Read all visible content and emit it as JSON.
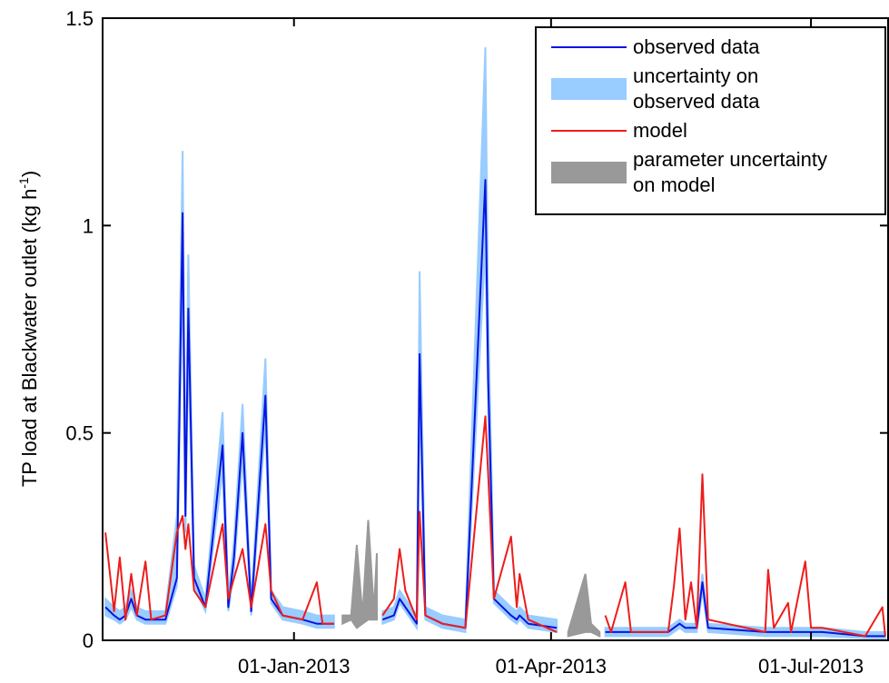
{
  "chart_data": {
    "type": "line",
    "y_label": [
      "TP load at Blackwater outlet (kg h",
      "-1",
      ")"
    ],
    "x": [
      "27-Oct-2012",
      "30-Oct-2012",
      "01-Nov-2012",
      "03-Nov-2012",
      "05-Nov-2012",
      "07-Nov-2012",
      "10-Nov-2012",
      "12-Nov-2012",
      "17-Nov-2012",
      "21-Nov-2012",
      "23-Nov-2012",
      "24-Nov-2012",
      "25-Nov-2012",
      "27-Nov-2012",
      "01-Dec-2012",
      "07-Dec-2012",
      "09-Dec-2012",
      "11-Dec-2012",
      "14-Dec-2012",
      "17-Dec-2012",
      "22-Dec-2012",
      "24-Dec-2012",
      "28-Dec-2012",
      "04-Jan-2013",
      "09-Jan-2013",
      "11-Jan-2013",
      "15-Jan-2013",
      "18-Jan-2013",
      "21-Jan-2013",
      "23-Jan-2013",
      "25-Jan-2013",
      "27-Jan-2013",
      "29-Jan-2013",
      "30-Jan-2013",
      "01-Feb-2013",
      "05-Feb-2013",
      "07-Feb-2013",
      "09-Feb-2013",
      "13-Feb-2013",
      "14-Feb-2013",
      "16-Feb-2013",
      "22-Feb-2013",
      "02-Mar-2013",
      "09-Mar-2013",
      "10-Mar-2013",
      "12-Mar-2013",
      "18-Mar-2013",
      "20-Mar-2013",
      "21-Mar-2013",
      "24-Mar-2013",
      "03-Apr-2013",
      "07-Apr-2013",
      "13-Apr-2013",
      "15-Apr-2013",
      "18-Apr-2013",
      "20-Apr-2013",
      "22-Apr-2013",
      "27-Apr-2013",
      "29-Apr-2013",
      "12-May-2013",
      "14-May-2013",
      "16-May-2013",
      "18-May-2013",
      "20-May-2013",
      "22-May-2013",
      "24-May-2013",
      "26-May-2013",
      "15-Jun-2013",
      "16-Jun-2013",
      "18-Jun-2013",
      "23-Jun-2013",
      "24-Jun-2013",
      "29-Jun-2013",
      "01-Jul-2013",
      "05-Jul-2013",
      "20-Jul-2013",
      "26-Jul-2013",
      "27-Jul-2013"
    ],
    "xlim": [
      "26-Oct-2012",
      "28-Jul-2013"
    ],
    "xticks": [
      "01-Jan-2013",
      "01-Apr-2013",
      "01-Jul-2013"
    ],
    "ylim": [
      0,
      1.5
    ],
    "yticks": [
      0,
      0.5,
      1,
      1.5
    ],
    "legend": "upper right",
    "series": [
      {
        "name": "observed data",
        "color": "#0a14e0",
        "style": "line",
        "values": [
          0.08,
          0.06,
          0.05,
          0.06,
          0.1,
          0.06,
          0.05,
          0.05,
          0.05,
          0.15,
          1.03,
          0.3,
          0.8,
          0.15,
          0.08,
          0.47,
          0.08,
          0.2,
          0.5,
          0.07,
          0.59,
          0.1,
          0.06,
          0.05,
          0.04,
          0.04,
          0.04,
          null,
          null,
          null,
          null,
          null,
          null,
          null,
          0.05,
          0.06,
          0.1,
          0.08,
          0.04,
          0.69,
          0.06,
          0.04,
          0.03,
          1.11,
          0.63,
          0.1,
          0.06,
          0.05,
          0.06,
          0.04,
          0.03,
          null,
          null,
          null,
          null,
          0.02,
          0.02,
          0.02,
          0.02,
          0.02,
          0.03,
          0.04,
          0.03,
          0.03,
          0.03,
          0.14,
          0.03,
          0.02,
          0.02,
          0.02,
          0.02,
          0.02,
          0.02,
          0.02,
          0.02,
          0.01,
          0.01,
          0.01
        ]
      },
      {
        "name": "uncertainty on observed data",
        "color": "#99ccff",
        "style": "band",
        "lower": [
          0.06,
          0.05,
          0.04,
          0.05,
          0.08,
          0.05,
          0.04,
          0.04,
          0.04,
          0.13,
          0.9,
          0.26,
          0.7,
          0.13,
          0.07,
          0.41,
          0.07,
          0.17,
          0.44,
          0.06,
          0.52,
          0.09,
          0.05,
          0.04,
          0.03,
          0.03,
          0.03,
          null,
          null,
          null,
          null,
          null,
          null,
          null,
          0.04,
          0.05,
          0.09,
          0.07,
          0.03,
          0.6,
          0.05,
          0.03,
          0.02,
          0.95,
          0.55,
          0.09,
          0.05,
          0.04,
          0.05,
          0.03,
          0.02,
          null,
          null,
          null,
          null,
          0.01,
          0.01,
          0.01,
          0.01,
          0.01,
          0.02,
          0.03,
          0.02,
          0.02,
          0.02,
          0.12,
          0.02,
          0.01,
          0.01,
          0.01,
          0.01,
          0.01,
          0.01,
          0.01,
          0.01,
          0.005,
          0.005,
          0.005
        ],
        "upper": [
          0.1,
          0.08,
          0.07,
          0.08,
          0.12,
          0.08,
          0.07,
          0.07,
          0.07,
          0.3,
          1.18,
          0.35,
          0.93,
          0.18,
          0.1,
          0.55,
          0.1,
          0.24,
          0.57,
          0.09,
          0.68,
          0.12,
          0.08,
          0.07,
          0.06,
          0.06,
          0.06,
          null,
          null,
          null,
          null,
          null,
          null,
          null,
          0.07,
          0.08,
          0.12,
          0.1,
          0.06,
          0.89,
          0.08,
          0.06,
          0.05,
          1.43,
          0.8,
          0.12,
          0.08,
          0.07,
          0.08,
          0.06,
          0.05,
          null,
          null,
          null,
          null,
          0.03,
          0.03,
          0.03,
          0.03,
          0.03,
          0.04,
          0.05,
          0.04,
          0.04,
          0.04,
          0.16,
          0.04,
          0.03,
          0.03,
          0.03,
          0.03,
          0.03,
          0.03,
          0.03,
          0.03,
          0.02,
          0.02,
          0.02
        ]
      },
      {
        "name": "model",
        "color": "#ee1c1c",
        "style": "line",
        "values": [
          0.26,
          0.07,
          0.2,
          0.05,
          0.16,
          0.06,
          0.19,
          0.05,
          0.06,
          0.26,
          0.3,
          0.22,
          0.28,
          0.12,
          0.08,
          0.28,
          0.1,
          0.15,
          0.22,
          0.08,
          0.28,
          0.12,
          0.06,
          0.05,
          0.14,
          0.04,
          0.04,
          null,
          null,
          null,
          null,
          null,
          null,
          null,
          0.06,
          0.1,
          0.22,
          0.12,
          0.05,
          0.31,
          0.06,
          0.04,
          0.03,
          0.54,
          0.4,
          0.1,
          0.25,
          0.08,
          0.16,
          0.05,
          0.02,
          null,
          null,
          null,
          null,
          0.06,
          0.02,
          0.14,
          0.02,
          0.02,
          0.13,
          0.27,
          0.05,
          0.14,
          0.03,
          0.4,
          0.05,
          0.02,
          0.17,
          0.03,
          0.09,
          0.02,
          0.19,
          0.03,
          0.03,
          0.01,
          0.08,
          0.01
        ]
      },
      {
        "name": "parameter uncertainty on model",
        "color": "#999999",
        "style": "band",
        "lower": [
          null,
          null,
          null,
          null,
          null,
          null,
          null,
          null,
          null,
          null,
          null,
          null,
          null,
          null,
          null,
          null,
          null,
          null,
          null,
          null,
          null,
          null,
          null,
          null,
          null,
          null,
          null,
          0.04,
          0.05,
          0.03,
          0.04,
          0.05,
          0.05,
          0.05,
          null,
          null,
          null,
          null,
          null,
          null,
          null,
          null,
          null,
          null,
          null,
          null,
          null,
          null,
          null,
          null,
          null,
          0.01,
          0.02,
          0.02,
          0.01,
          null,
          null,
          null,
          null,
          null,
          null,
          null,
          null,
          null,
          null,
          null,
          null,
          null,
          null,
          null,
          null,
          null,
          null,
          null,
          null,
          null,
          null,
          null
        ],
        "upper": [
          null,
          null,
          null,
          null,
          null,
          null,
          null,
          null,
          null,
          null,
          null,
          null,
          null,
          null,
          null,
          null,
          null,
          null,
          null,
          null,
          null,
          null,
          null,
          null,
          null,
          null,
          null,
          0.06,
          0.06,
          0.23,
          0.06,
          0.29,
          0.07,
          0.21,
          null,
          null,
          null,
          null,
          null,
          null,
          null,
          null,
          null,
          null,
          null,
          null,
          null,
          null,
          null,
          null,
          null,
          0.02,
          0.16,
          0.04,
          0.02,
          null,
          null,
          null,
          null,
          null,
          null,
          null,
          null,
          null,
          null,
          null,
          null,
          null,
          null,
          null,
          null,
          null,
          null,
          null,
          null,
          null,
          null,
          null
        ]
      }
    ]
  }
}
